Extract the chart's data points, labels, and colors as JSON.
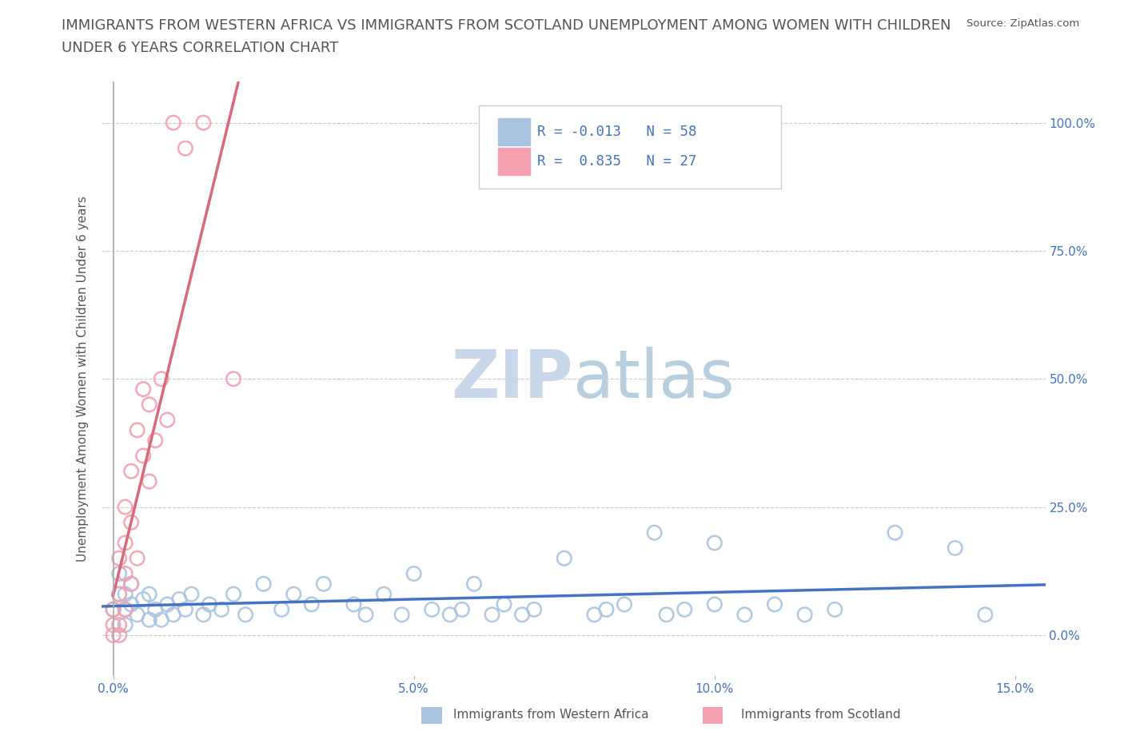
{
  "title_line1": "IMMIGRANTS FROM WESTERN AFRICA VS IMMIGRANTS FROM SCOTLAND UNEMPLOYMENT AMONG WOMEN WITH CHILDREN",
  "title_line2": "UNDER 6 YEARS CORRELATION CHART",
  "source_text": "Source: ZipAtlas.com",
  "ylabel": "Unemployment Among Women with Children Under 6 years",
  "xlim": [
    -0.002,
    0.155
  ],
  "ylim": [
    -0.08,
    1.08
  ],
  "xtick_vals": [
    0.0,
    0.05,
    0.1,
    0.15
  ],
  "xtick_labels": [
    "0.0%",
    "5.0%",
    "10.0%",
    "15.0%"
  ],
  "ytick_vals": [
    0.0,
    0.25,
    0.5,
    0.75,
    1.0
  ],
  "ytick_labels": [
    "0.0%",
    "25.0%",
    "50.0%",
    "75.0%",
    "100.0%"
  ],
  "western_africa_color": "#a8c4e0",
  "scotland_color": "#f4a0b0",
  "western_africa_line_color": "#4472c4",
  "scotland_line_color": "#d9687a",
  "watermark_text": "ZIPatlas",
  "watermark_color": "#dde5f0",
  "legend_r1": "R = -0.013   N = 58",
  "legend_r2": "R =  0.835   N = 27",
  "legend_label_1": "Immigrants from Western Africa",
  "legend_label_2": "Immigrants from Scotland",
  "text_color": "#555555",
  "blue_label_color": "#4472c4",
  "wa_x": [
    0.0,
    0.001,
    0.001,
    0.002,
    0.002,
    0.002,
    0.003,
    0.003,
    0.004,
    0.005,
    0.006,
    0.006,
    0.007,
    0.008,
    0.009,
    0.01,
    0.011,
    0.012,
    0.013,
    0.015,
    0.016,
    0.018,
    0.02,
    0.022,
    0.025,
    0.028,
    0.03,
    0.033,
    0.035,
    0.04,
    0.042,
    0.045,
    0.048,
    0.05,
    0.053,
    0.056,
    0.058,
    0.06,
    0.063,
    0.065,
    0.068,
    0.07,
    0.075,
    0.08,
    0.082,
    0.085,
    0.09,
    0.092,
    0.095,
    0.1,
    0.1,
    0.105,
    0.11,
    0.115,
    0.12,
    0.13,
    0.14,
    0.145
  ],
  "wa_y": [
    0.05,
    0.08,
    0.12,
    0.05,
    0.08,
    0.02,
    0.06,
    0.1,
    0.04,
    0.07,
    0.03,
    0.08,
    0.05,
    0.03,
    0.06,
    0.04,
    0.07,
    0.05,
    0.08,
    0.04,
    0.06,
    0.05,
    0.08,
    0.04,
    0.1,
    0.05,
    0.08,
    0.06,
    0.1,
    0.06,
    0.04,
    0.08,
    0.04,
    0.12,
    0.05,
    0.04,
    0.05,
    0.1,
    0.04,
    0.06,
    0.04,
    0.05,
    0.15,
    0.04,
    0.05,
    0.06,
    0.2,
    0.04,
    0.05,
    0.06,
    0.18,
    0.04,
    0.06,
    0.04,
    0.05,
    0.2,
    0.17,
    0.04
  ],
  "sc_x": [
    0.0,
    0.0,
    0.0,
    0.001,
    0.001,
    0.001,
    0.001,
    0.002,
    0.002,
    0.002,
    0.002,
    0.003,
    0.003,
    0.003,
    0.004,
    0.004,
    0.005,
    0.005,
    0.006,
    0.006,
    0.007,
    0.008,
    0.009,
    0.01,
    0.012,
    0.015,
    0.02
  ],
  "sc_y": [
    0.0,
    0.02,
    0.05,
    0.0,
    0.02,
    0.08,
    0.15,
    0.05,
    0.12,
    0.18,
    0.25,
    0.1,
    0.22,
    0.32,
    0.15,
    0.4,
    0.35,
    0.48,
    0.3,
    0.45,
    0.38,
    0.5,
    0.42,
    1.0,
    0.95,
    1.0,
    0.5
  ]
}
